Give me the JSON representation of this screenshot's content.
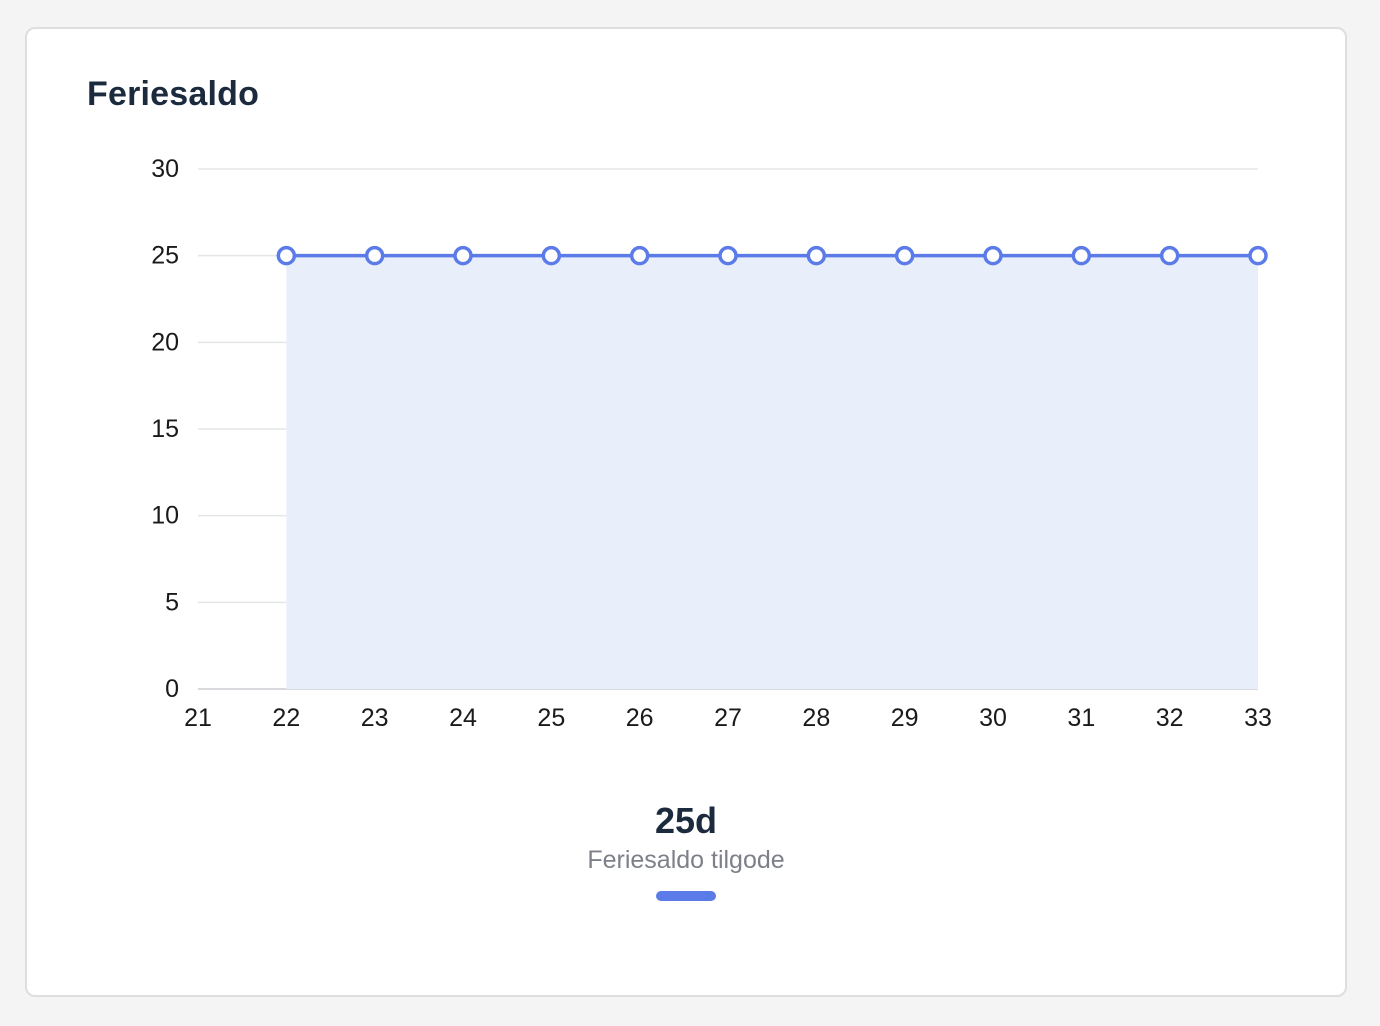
{
  "card": {
    "title": "Feriesaldo"
  },
  "summary": {
    "value": "25d",
    "label": "Feriesaldo tilgode"
  },
  "colors": {
    "line": "#5b7be9",
    "area": "#e8eefa",
    "grid": "#e3e5e8",
    "title": "#1b2a3d"
  },
  "chart_data": {
    "type": "area",
    "title": "Feriesaldo",
    "xlabel": "",
    "ylabel": "",
    "x": [
      22,
      23,
      24,
      25,
      26,
      27,
      28,
      29,
      30,
      31,
      32,
      33
    ],
    "series": [
      {
        "name": "Feriesaldo tilgode",
        "values": [
          25,
          25,
          25,
          25,
          25,
          25,
          25,
          25,
          25,
          25,
          25,
          25
        ]
      }
    ],
    "xlim": [
      21,
      33
    ],
    "ylim": [
      0,
      30
    ],
    "x_ticks": [
      21,
      22,
      23,
      24,
      25,
      26,
      27,
      28,
      29,
      30,
      31,
      32,
      33
    ],
    "y_ticks": [
      0,
      5,
      10,
      15,
      20,
      25,
      30
    ],
    "grid": true,
    "legend": "bottom-center"
  }
}
